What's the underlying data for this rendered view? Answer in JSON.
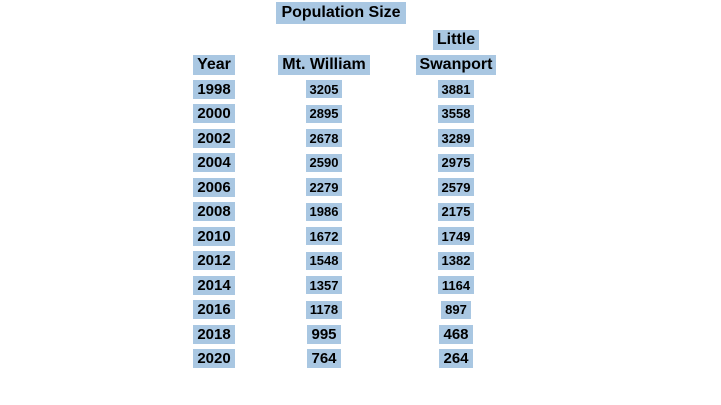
{
  "title": "Population Size",
  "table": {
    "header": {
      "year": "Year",
      "mt_william": "Mt. William",
      "little": "Little",
      "swanport": "Swanport"
    }
  },
  "chart_data": {
    "type": "table",
    "title": "Population Size",
    "categories": [
      "1998",
      "2000",
      "2002",
      "2004",
      "2006",
      "2008",
      "2010",
      "2012",
      "2014",
      "2016",
      "2018",
      "2020"
    ],
    "series": [
      {
        "name": "Mt. William",
        "values": [
          3205,
          2895,
          2678,
          2590,
          2279,
          1986,
          1672,
          1548,
          1357,
          1178,
          995,
          764
        ]
      },
      {
        "name": "Little Swanport",
        "values": [
          3881,
          3558,
          3289,
          2975,
          2579,
          2175,
          1749,
          1382,
          1164,
          897,
          468,
          264
        ]
      }
    ],
    "xlabel": "Year",
    "ylabel": "Population Size"
  },
  "colors": {
    "highlight": "#a9c7e2",
    "text": "#000000",
    "page_background": "#ffffff"
  }
}
